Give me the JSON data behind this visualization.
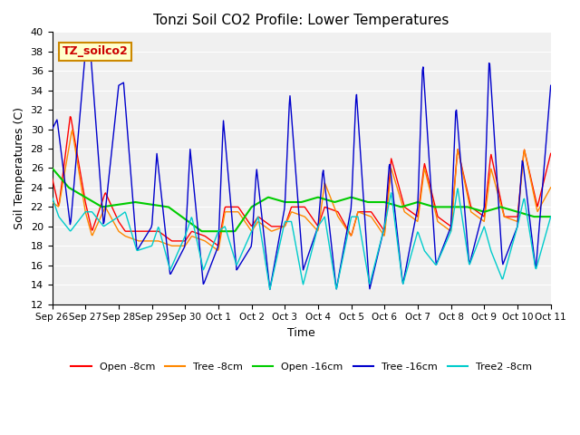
{
  "title": "Tonzi Soil CO2 Profile: Lower Temperatures",
  "xlabel": "Time",
  "ylabel": "Soil Temperatures (C)",
  "ylim": [
    12,
    40
  ],
  "yticks": [
    12,
    14,
    16,
    18,
    20,
    22,
    24,
    26,
    28,
    30,
    32,
    34,
    36,
    38,
    40
  ],
  "xtick_labels": [
    "Sep 26",
    "Sep 27",
    "Sep 28",
    "Sep 29",
    "Sep 30",
    "Oct 1",
    "Oct 2",
    "Oct 3",
    "Oct 4",
    "Oct 5",
    "Oct 6",
    "Oct 7",
    "Oct 8",
    "Oct 9",
    "Oct 10",
    "Oct 11"
  ],
  "watermark_text": "TZ_soilco2",
  "watermark_color": "#cc0000",
  "watermark_bg": "#ffffcc",
  "watermark_border": "#cc8800",
  "series_colors": {
    "open_8cm": "#ff0000",
    "tree_8cm": "#ff8800",
    "open_16cm": "#00cc00",
    "tree_16cm": "#0000cc",
    "tree2_8cm": "#00cccc"
  },
  "series_labels": [
    "Open -8cm",
    "Tree -8cm",
    "Open -16cm",
    "Tree -16cm",
    "Tree2 -8cm"
  ],
  "plot_bg_color": "#f0f0f0"
}
